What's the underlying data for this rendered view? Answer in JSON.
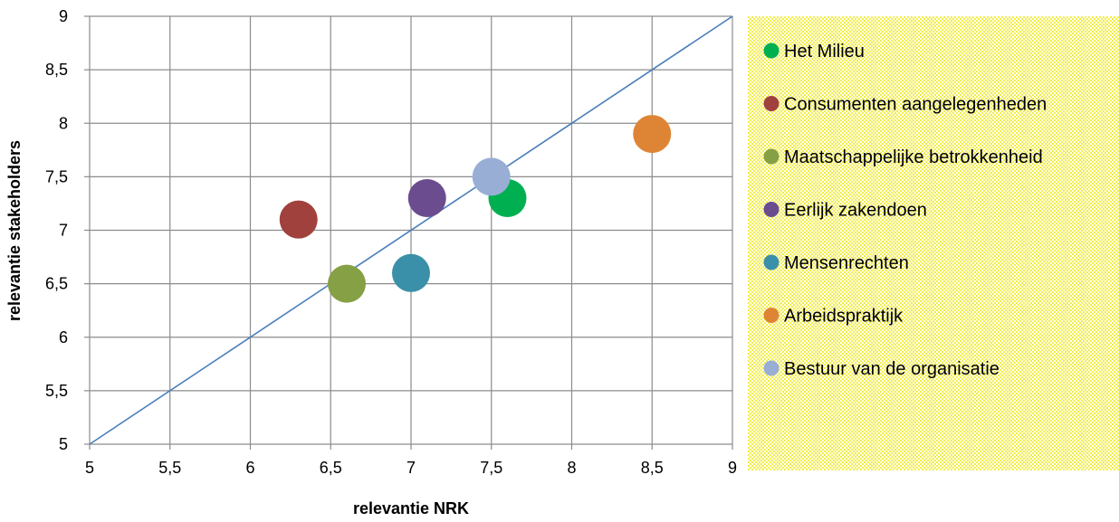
{
  "chart_data": {
    "type": "scatter",
    "title": "",
    "xlabel": "relevantie NRK",
    "ylabel": "relevantie stakeholders",
    "xlim": [
      5,
      9
    ],
    "ylim": [
      5,
      9
    ],
    "x_ticks": [
      "5",
      "5,5",
      "6",
      "6,5",
      "7",
      "7,5",
      "8",
      "8,5",
      "9"
    ],
    "y_ticks": [
      "5",
      "5,5",
      "6",
      "6,5",
      "7",
      "7,5",
      "8",
      "8,5",
      "9"
    ],
    "grid": true,
    "reference_line": {
      "from": [
        5,
        5
      ],
      "to": [
        9,
        9
      ],
      "color": "#4a7ebb"
    },
    "legend_position": "right",
    "legend_background": "#ffff99",
    "series": [
      {
        "name": "Het Milieu",
        "x": 7.6,
        "y": 7.3,
        "color": "#00b050"
      },
      {
        "name": "Consumenten aangelegenheden",
        "x": 6.3,
        "y": 7.1,
        "color": "#a0413e"
      },
      {
        "name": "Maatschappelijke betrokkenheid",
        "x": 6.6,
        "y": 6.5,
        "color": "#86a045"
      },
      {
        "name": "Eerlijk zakendoen",
        "x": 7.1,
        "y": 7.3,
        "color": "#6b4c8e"
      },
      {
        "name": "Mensenrechten",
        "x": 7.0,
        "y": 6.6,
        "color": "#3a90a8"
      },
      {
        "name": "Arbeidspraktijk",
        "x": 8.5,
        "y": 7.9,
        "color": "#de8535"
      },
      {
        "name": "Bestuur van de organisatie",
        "x": 7.5,
        "y": 7.5,
        "color": "#98aed5"
      }
    ]
  }
}
